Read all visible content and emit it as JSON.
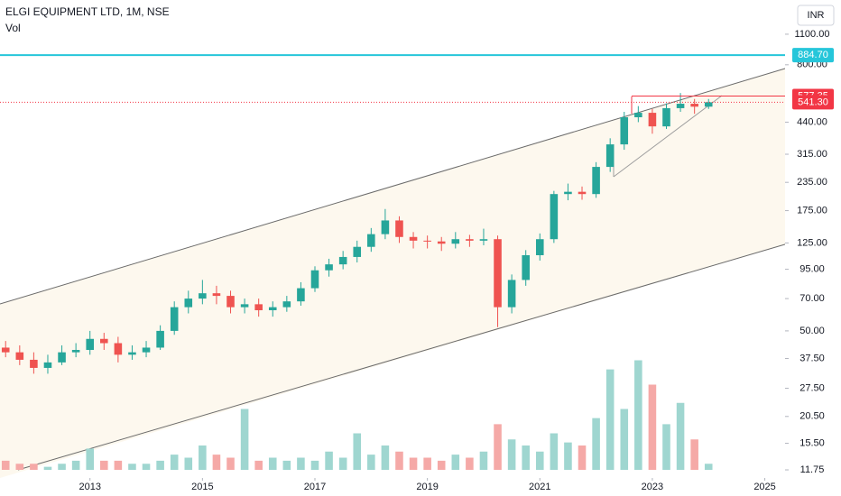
{
  "chart_data": {
    "type": "candlestick",
    "title": "ELGI EQUIPMENT LTD, 1M, NSE",
    "subtitle": "Vol",
    "currency": "INR",
    "log_scale": true,
    "x": [
      2011.5,
      2011.75,
      2012,
      2012.25,
      2012.5,
      2012.75,
      2013,
      2013.25,
      2013.5,
      2013.75,
      2014,
      2014.25,
      2014.5,
      2014.75,
      2015,
      2015.25,
      2015.5,
      2015.75,
      2016,
      2016.25,
      2016.5,
      2016.75,
      2017,
      2017.25,
      2017.5,
      2017.75,
      2018,
      2018.25,
      2018.5,
      2018.75,
      2019,
      2019.25,
      2019.5,
      2019.75,
      2020,
      2020.25,
      2020.5,
      2020.75,
      2021,
      2021.25,
      2021.5,
      2021.75,
      2022,
      2022.25,
      2022.5,
      2022.75,
      2023,
      2023.25,
      2023.5,
      2023.75,
      2024
    ],
    "open": [
      42,
      40,
      37,
      34,
      36,
      40,
      41,
      46,
      44,
      39,
      40,
      42,
      50,
      64,
      70,
      74,
      72,
      64,
      66,
      62,
      64,
      68,
      78,
      94,
      100,
      108,
      120,
      137,
      158,
      133,
      128,
      127,
      124,
      130,
      128,
      130,
      64,
      85,
      110,
      130,
      208,
      213,
      208,
      276,
      349,
      463,
      485,
      421,
      509,
      533,
      517
    ],
    "high": [
      45,
      43,
      40,
      39,
      43,
      44,
      50,
      49,
      47,
      43,
      45,
      53,
      68,
      76,
      85,
      80,
      76,
      70,
      70,
      68,
      72,
      83,
      98,
      106,
      115,
      128,
      146,
      178,
      165,
      140,
      135,
      133,
      140,
      136,
      145,
      135,
      90,
      116,
      138,
      215,
      232,
      225,
      290,
      372,
      490,
      520,
      505,
      535,
      596,
      560,
      560
    ],
    "low": [
      38,
      35,
      32,
      32,
      35,
      38,
      39,
      41,
      36,
      37,
      38,
      41,
      48,
      60,
      66,
      66,
      60,
      60,
      58,
      58,
      61,
      65,
      75,
      88,
      95,
      102,
      114,
      130,
      125,
      118,
      118,
      115,
      118,
      120,
      122,
      52,
      60,
      80,
      104,
      125,
      195,
      196,
      200,
      262,
      330,
      440,
      390,
      410,
      490,
      480,
      505
    ],
    "close": [
      40,
      37,
      34,
      36,
      40,
      41,
      46,
      44,
      39,
      40,
      42,
      50,
      64,
      70,
      74,
      72,
      64,
      66,
      62,
      64,
      68,
      78,
      94,
      100,
      108,
      120,
      137,
      158,
      133,
      128,
      127,
      124,
      130,
      128,
      130,
      64,
      85,
      110,
      130,
      208,
      213,
      208,
      276,
      349,
      463,
      485,
      421,
      509,
      533,
      517,
      541.3
    ],
    "volume": [
      3,
      2,
      2,
      1,
      2,
      3,
      7,
      3,
      3,
      2,
      2,
      3,
      5,
      4,
      8,
      5,
      4,
      20,
      3,
      4,
      3,
      4,
      3,
      6,
      4,
      12,
      5,
      8,
      6,
      4,
      4,
      3,
      5,
      4,
      6,
      15,
      10,
      8,
      6,
      12,
      9,
      8,
      17,
      33,
      20,
      36,
      28,
      15,
      22,
      10,
      2
    ],
    "vlim": [
      0,
      40
    ],
    "up_color": "#26a69a",
    "down_color": "#ef5350",
    "volume_up_color": "#9fd6d0",
    "volume_down_color": "#f5a9a7",
    "xlim": [
      2011.4,
      2025.36
    ],
    "xticks": [
      2013,
      2015,
      2017,
      2019,
      2021,
      2023,
      2025
    ],
    "ylim": [
      10.8,
      1571
    ],
    "yticks": [
      {
        "value": 1100,
        "label": "1100.00"
      },
      {
        "value": 800,
        "label": "800.00"
      },
      {
        "value": 440,
        "label": "440.00"
      },
      {
        "value": 315,
        "label": "315.00"
      },
      {
        "value": 235,
        "label": "235.00"
      },
      {
        "value": 175,
        "label": "175.00"
      },
      {
        "value": 125,
        "label": "125.00"
      },
      {
        "value": 95,
        "label": "95.00"
      },
      {
        "value": 70,
        "label": "70.00"
      },
      {
        "value": 50,
        "label": "50.00"
      },
      {
        "value": 37.5,
        "label": "37.50"
      },
      {
        "value": 27.5,
        "label": "27.50"
      },
      {
        "value": 20.5,
        "label": "20.50"
      },
      {
        "value": 15.5,
        "label": "15.50"
      },
      11.75
    ],
    "price_lines": [
      {
        "value": 884.7,
        "label": "884.70",
        "color": "#26c6da",
        "style": "solid"
      },
      {
        "value": 577.35,
        "label": "577.35",
        "color": "#f23645",
        "style": "solid"
      },
      {
        "value": 541.3,
        "label": "541.30",
        "color": "#f23645",
        "style": "dotted"
      }
    ]
  }
}
